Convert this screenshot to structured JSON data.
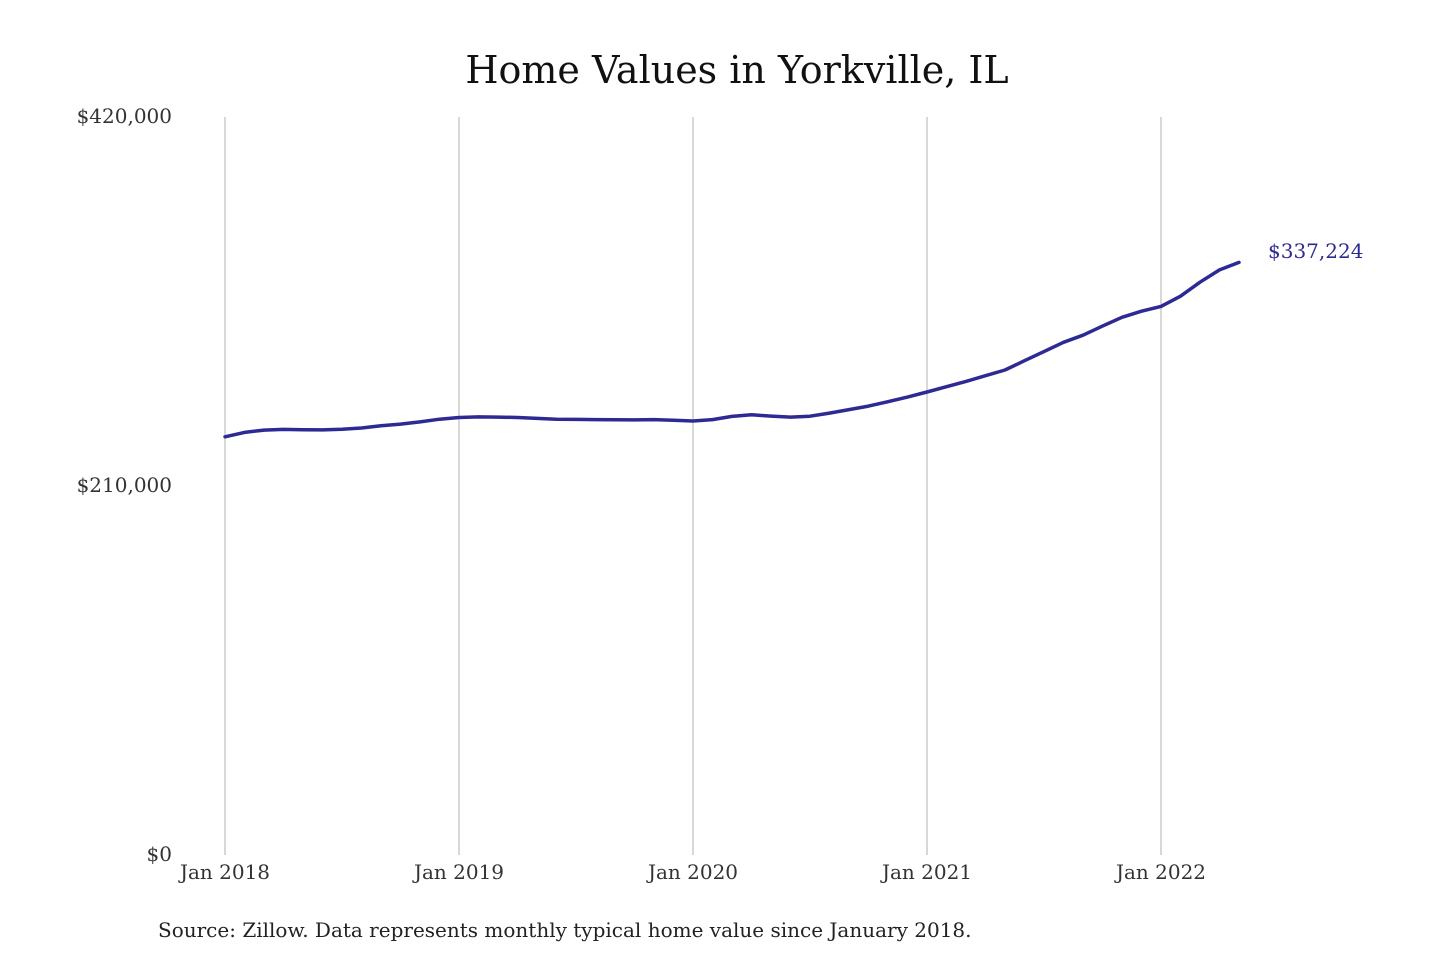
{
  "chart_data": {
    "type": "line",
    "title": "Home Values in Yorkville, IL",
    "xlabel": "",
    "ylabel": "",
    "ylim": [
      0,
      420000
    ],
    "y_ticks": [
      "$420,000",
      "$210,000",
      "$0"
    ],
    "y_tick_values": [
      420000,
      210000,
      0
    ],
    "x_ticks": [
      "Jan 2018",
      "Jan 2019",
      "Jan 2020",
      "Jan 2021",
      "Jan 2022"
    ],
    "x_tick_values": [
      "2018-01",
      "2019-01",
      "2020-01",
      "2021-01",
      "2022-01"
    ],
    "grid": "vertical lines at x ticks",
    "series": [
      {
        "x": [
          "2018-01",
          "2018-02",
          "2018-03",
          "2018-04",
          "2018-05",
          "2018-06",
          "2018-07",
          "2018-08",
          "2018-09",
          "2018-10",
          "2018-11",
          "2018-12",
          "2019-01",
          "2019-02",
          "2019-03",
          "2019-04",
          "2019-05",
          "2019-06",
          "2019-07",
          "2019-08",
          "2019-09",
          "2019-10",
          "2019-11",
          "2019-12",
          "2020-01",
          "2020-02",
          "2020-03",
          "2020-04",
          "2020-05",
          "2020-06",
          "2020-07",
          "2020-08",
          "2020-09",
          "2020-10",
          "2020-11",
          "2020-12",
          "2021-01",
          "2021-02",
          "2021-03",
          "2021-04",
          "2021-05",
          "2021-06",
          "2021-07",
          "2021-08",
          "2021-09",
          "2021-10",
          "2021-11",
          "2021-12",
          "2022-01",
          "2022-02",
          "2022-03",
          "2022-04",
          "2022-05"
        ],
        "values": [
          238000,
          240500,
          241800,
          242200,
          242000,
          241900,
          242300,
          243000,
          244300,
          245200,
          246500,
          248000,
          249000,
          249300,
          249200,
          249000,
          248500,
          248000,
          247900,
          247800,
          247700,
          247600,
          247800,
          247400,
          247000,
          247800,
          249600,
          250500,
          249800,
          249200,
          249700,
          251500,
          253500,
          255500,
          258000,
          260600,
          263500,
          266500,
          269500,
          272800,
          276000,
          281300,
          286500,
          291800,
          295800,
          301000,
          306000,
          309500,
          312200,
          318000,
          326000,
          333000,
          337224
        ]
      }
    ],
    "end_label": "$337,224",
    "source": "Source: Zillow. Data represents monthly typical home value since January 2018.",
    "colors": {
      "line": "#2e2a94",
      "end_label": "#2e2a94",
      "grid": "#bdbdbd"
    }
  }
}
